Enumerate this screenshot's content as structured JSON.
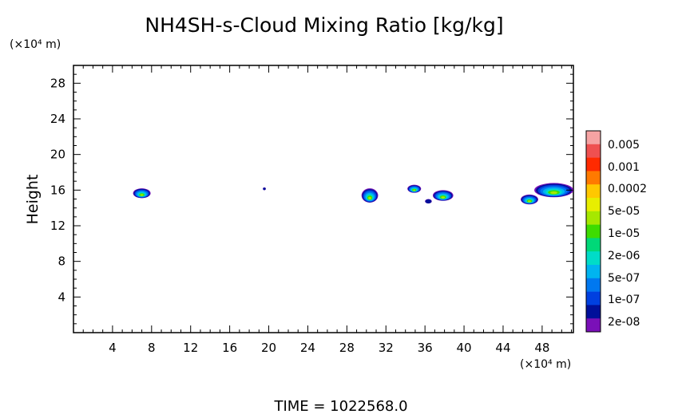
{
  "chart_data": {
    "type": "heatmap",
    "title": "NH4SH-s-Cloud Mixing Ratio [kg/kg]",
    "ylabel": "Height",
    "xlabel": "",
    "x_unit": "(×10⁴ m)",
    "y_unit": "(×10⁴ m)",
    "footer": "TIME  =  1022568.0",
    "xlim": [
      0,
      51.2
    ],
    "ylim": [
      0,
      30
    ],
    "x_ticks": [
      4,
      8,
      12,
      16,
      20,
      24,
      28,
      32,
      36,
      40,
      44,
      48
    ],
    "y_ticks": [
      4,
      8,
      12,
      16,
      20,
      24,
      28
    ],
    "colorbar": {
      "labels": [
        "0.005",
        "0.001",
        "0.0002",
        "5e-05",
        "1e-05",
        "2e-06",
        "5e-07",
        "1e-07",
        "2e-08"
      ],
      "colors": [
        "#f6a3a3",
        "#ef5050",
        "#ff2a00",
        "#ff7a00",
        "#ffc800",
        "#e8ee00",
        "#a6e800",
        "#3edc00",
        "#00d878",
        "#00dcc8",
        "#00b4f0",
        "#0078f0",
        "#0040e0",
        "#00109a",
        "#7a10b8"
      ]
    },
    "clouds": [
      {
        "x0": 6.1,
        "x1": 7.9,
        "y0": 15.1,
        "y1": 16.2
      },
      {
        "x0": 19.4,
        "x1": 19.7,
        "y0": 16.0,
        "y1": 16.3
      },
      {
        "x0": 29.5,
        "x1": 31.2,
        "y0": 14.6,
        "y1": 16.2
      },
      {
        "x0": 34.2,
        "x1": 35.6,
        "y0": 15.7,
        "y1": 16.6
      },
      {
        "x0": 36.0,
        "x1": 36.7,
        "y0": 14.5,
        "y1": 15.0
      },
      {
        "x0": 36.8,
        "x1": 38.9,
        "y0": 14.8,
        "y1": 16.0
      },
      {
        "x0": 45.8,
        "x1": 47.6,
        "y0": 14.4,
        "y1": 15.5
      },
      {
        "x0": 47.2,
        "x1": 51.2,
        "y0": 15.2,
        "y1": 16.8
      }
    ]
  }
}
